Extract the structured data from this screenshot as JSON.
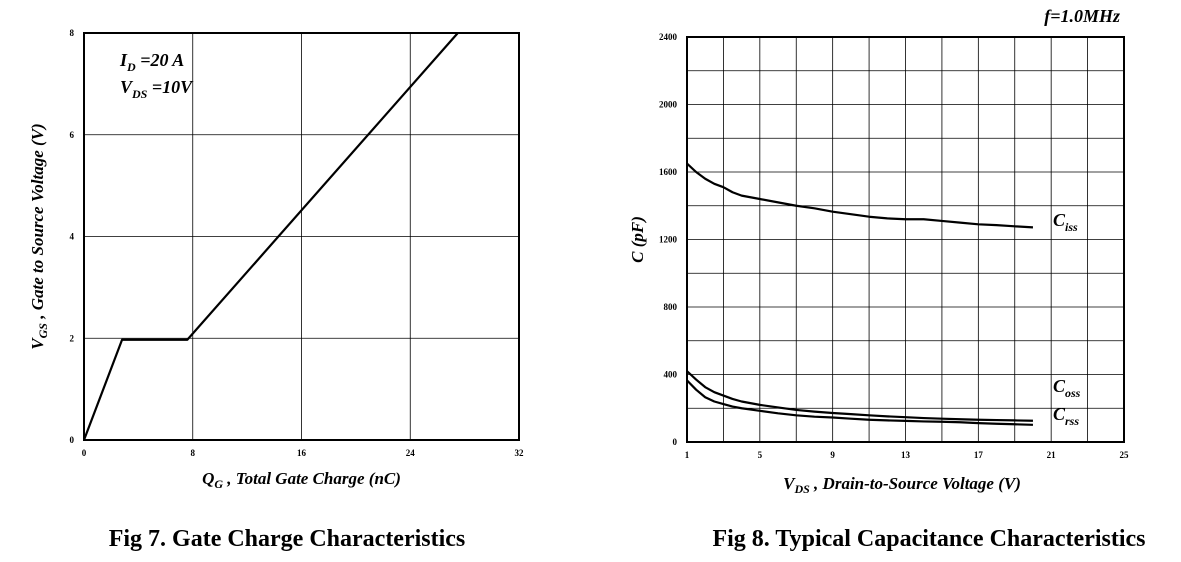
{
  "chart_data": [
    {
      "type": "line",
      "caption": "Fig 7. Gate Charge Characteristics",
      "xlabel": {
        "main": "Q",
        "sub": "G",
        "rest": " , Total Gate Charge (nC)"
      },
      "ylabel": {
        "main": "V",
        "sub": "GS",
        "rest": " , Gate to Source Voltage (V)"
      },
      "xlim": [
        0,
        32
      ],
      "ylim": [
        0,
        8
      ],
      "xticks": [
        "0",
        "8",
        "16",
        "24",
        "32"
      ],
      "yticks": [
        "0",
        "2",
        "4",
        "6",
        "8"
      ],
      "grid": true,
      "annotations": [
        {
          "main": "I",
          "sub": "D",
          "rest": " =20 A"
        },
        {
          "main": "V",
          "sub": "DS",
          "rest": " =10V"
        }
      ],
      "series": [
        {
          "x": [
            0,
            2.8,
            7.6,
            27.5
          ],
          "y": [
            0,
            1.97,
            1.97,
            8.0
          ]
        }
      ]
    },
    {
      "type": "line",
      "caption": "Fig 8. Typical Capacitance Characteristics",
      "xlabel": {
        "main": "V",
        "sub": "DS",
        "rest": " , Drain-to-Source Voltage (V)"
      },
      "ylabel": {
        "main": "C (pF)",
        "sub": "",
        "rest": ""
      },
      "xlim": [
        1,
        25
      ],
      "ylim": [
        0,
        2400
      ],
      "xticks": [
        "1",
        "5",
        "9",
        "13",
        "17",
        "21",
        "25"
      ],
      "yticks": [
        "0",
        "400",
        "800",
        "1200",
        "1600",
        "2000",
        "2400"
      ],
      "grid": true,
      "annotation": "f=1.0MHz",
      "series": [
        {
          "name_main": "C",
          "name_sub": "iss",
          "x": [
            1,
            1.5,
            2,
            2.5,
            3,
            3.5,
            4,
            5,
            6,
            7,
            8,
            9,
            10,
            11,
            12,
            13,
            14,
            15,
            16,
            17,
            18,
            19,
            20
          ],
          "y": [
            1650,
            1600,
            1560,
            1530,
            1510,
            1480,
            1460,
            1440,
            1420,
            1400,
            1385,
            1365,
            1350,
            1335,
            1325,
            1320,
            1320,
            1310,
            1300,
            1290,
            1285,
            1278,
            1272
          ]
        },
        {
          "name_main": "C",
          "name_sub": "oss",
          "x": [
            1,
            1.5,
            2,
            2.5,
            3,
            3.5,
            4,
            5,
            6,
            7,
            8,
            9,
            10,
            11,
            12,
            13,
            14,
            15,
            16,
            17,
            18,
            19,
            20
          ],
          "y": [
            420,
            370,
            325,
            295,
            275,
            255,
            240,
            220,
            205,
            190,
            180,
            172,
            165,
            158,
            152,
            147,
            142,
            138,
            135,
            132,
            130,
            128,
            126
          ]
        },
        {
          "name_main": "C",
          "name_sub": "rss",
          "x": [
            1,
            1.5,
            2,
            2.5,
            3,
            3.5,
            4,
            5,
            6,
            7,
            8,
            9,
            10,
            11,
            12,
            13,
            14,
            15,
            16,
            17,
            18,
            19,
            20
          ],
          "y": [
            365,
            310,
            265,
            240,
            225,
            210,
            200,
            185,
            170,
            158,
            150,
            145,
            138,
            132,
            128,
            125,
            122,
            120,
            117,
            112,
            108,
            105,
            102
          ]
        }
      ]
    }
  ]
}
